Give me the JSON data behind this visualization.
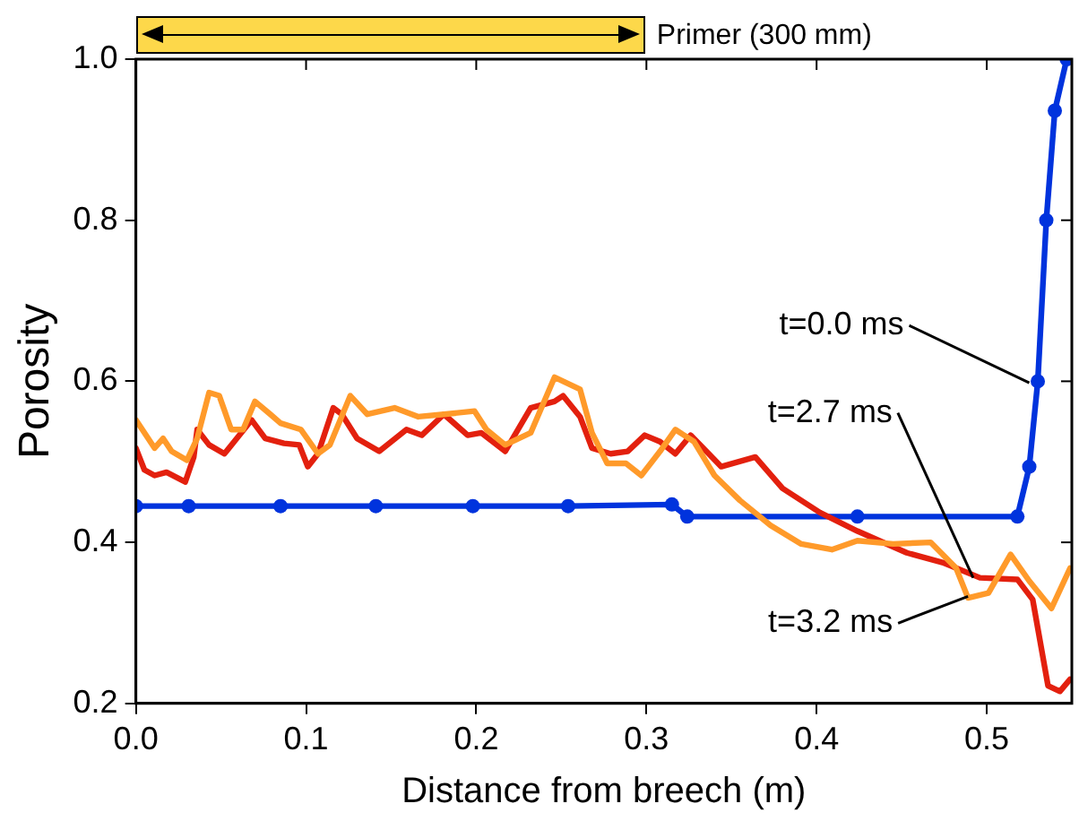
{
  "chart_data": {
    "type": "line",
    "xlabel": "Distance from breech (m)",
    "ylabel": "Porosity",
    "xlim": [
      0,
      0.55
    ],
    "xticks": [
      {
        "value": 0,
        "label": "0.0"
      },
      0.1,
      0.2,
      0.3,
      0.4,
      0.5
    ],
    "ylim": [
      0.2,
      1.0
    ],
    "yticks": [
      0.2,
      0.4,
      0.6,
      0.8,
      {
        "value": 1,
        "label": "1.0"
      }
    ],
    "grid": false,
    "legend": false,
    "line_style": "solid",
    "series": [
      {
        "color": "#ff9a2a",
        "marker": "none",
        "x": [
          0,
          0.011,
          0.016,
          0.021,
          0.03,
          0.036,
          0.043,
          0.049,
          0.056,
          0.063,
          0.07,
          0.079,
          0.085,
          0.097,
          0.107,
          0.114,
          0.126,
          0.136,
          0.152,
          0.166,
          0.181,
          0.199,
          0.206,
          0.217,
          0.232,
          0.246,
          0.261,
          0.268,
          0.277,
          0.288,
          0.297,
          0.308,
          0.317,
          0.328,
          0.34,
          0.355,
          0.373,
          0.391,
          0.409,
          0.424,
          0.445,
          0.467,
          0.482,
          0.489,
          0.501,
          0.514,
          0.525,
          0.538,
          0.549
        ],
        "values": [
          0.552,
          0.517,
          0.529,
          0.513,
          0.502,
          0.529,
          0.586,
          0.582,
          0.54,
          0.54,
          0.575,
          0.559,
          0.548,
          0.54,
          0.51,
          0.521,
          0.582,
          0.559,
          0.567,
          0.556,
          0.559,
          0.563,
          0.54,
          0.521,
          0.536,
          0.605,
          0.59,
          0.536,
          0.498,
          0.498,
          0.483,
          0.513,
          0.54,
          0.525,
          0.483,
          0.452,
          0.421,
          0.398,
          0.391,
          0.402,
          0.398,
          0.4,
          0.368,
          0.331,
          0.337,
          0.385,
          0.352,
          0.318,
          0.368
        ]
      },
      {
        "color": "#e3200e",
        "marker": "none",
        "x": [
          0,
          0.005,
          0.011,
          0.018,
          0.029,
          0.034,
          0.036,
          0.043,
          0.052,
          0.068,
          0.076,
          0.087,
          0.096,
          0.101,
          0.107,
          0.116,
          0.121,
          0.13,
          0.143,
          0.159,
          0.168,
          0.181,
          0.195,
          0.203,
          0.217,
          0.232,
          0.246,
          0.251,
          0.261,
          0.268,
          0.279,
          0.289,
          0.299,
          0.308,
          0.317,
          0.326,
          0.344,
          0.364,
          0.38,
          0.402,
          0.424,
          0.453,
          0.474,
          0.496,
          0.518,
          0.527,
          0.536,
          0.543,
          0.549
        ],
        "values": [
          0.517,
          0.49,
          0.483,
          0.487,
          0.475,
          0.506,
          0.54,
          0.521,
          0.51,
          0.552,
          0.529,
          0.523,
          0.521,
          0.494,
          0.51,
          0.567,
          0.559,
          0.529,
          0.513,
          0.54,
          0.533,
          0.559,
          0.533,
          0.536,
          0.513,
          0.567,
          0.575,
          0.582,
          0.556,
          0.517,
          0.51,
          0.513,
          0.533,
          0.525,
          0.51,
          0.533,
          0.494,
          0.506,
          0.467,
          0.437,
          0.414,
          0.387,
          0.375,
          0.356,
          0.354,
          0.329,
          0.222,
          0.215,
          0.23
        ]
      },
      {
        "color": "#0033dd",
        "marker": "circle",
        "x": [
          0,
          0.031,
          0.085,
          0.141,
          0.198,
          0.254,
          0.315,
          0.324,
          0.424,
          0.518,
          0.525,
          0.53,
          0.535,
          0.54,
          0.547
        ],
        "values": [
          0.445,
          0.445,
          0.445,
          0.445,
          0.445,
          0.445,
          0.447,
          0.432,
          0.432,
          0.432,
          0.494,
          0.6,
          0.8,
          0.936,
          1.0
        ]
      }
    ],
    "annotations": [
      {
        "text": "t=0.0 ms",
        "x": 0.525,
        "y": 0.598
      },
      {
        "text": "t=2.7 ms",
        "x": 0.492,
        "y": 0.356
      },
      {
        "text": "t=3.2 ms",
        "x": 0.489,
        "y": 0.333
      },
      "Primer (300 mm)"
    ]
  }
}
